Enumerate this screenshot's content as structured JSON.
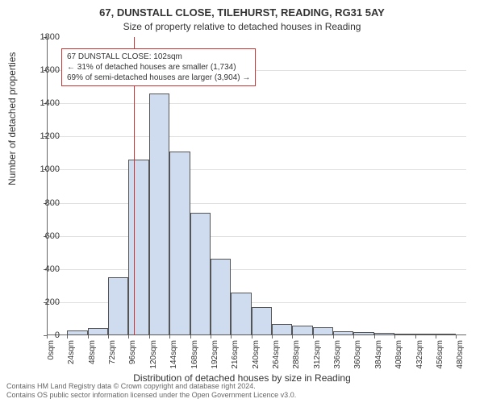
{
  "title_line1": "67, DUNSTALL CLOSE, TILEHURST, READING, RG31 5AY",
  "title_line2": "Size of property relative to detached houses in Reading",
  "chart": {
    "type": "histogram",
    "ylabel": "Number of detached properties",
    "xlabel": "Distribution of detached houses by size in Reading",
    "ylim": [
      0,
      1800
    ],
    "ytick_step": 200,
    "yticks": [
      0,
      200,
      400,
      600,
      800,
      1000,
      1200,
      1400,
      1600,
      1800
    ],
    "x_tick_labels": [
      "0sqm",
      "24sqm",
      "48sqm",
      "72sqm",
      "96sqm",
      "120sqm",
      "144sqm",
      "168sqm",
      "192sqm",
      "216sqm",
      "240sqm",
      "264sqm",
      "288sqm",
      "312sqm",
      "336sqm",
      "360sqm",
      "384sqm",
      "408sqm",
      "432sqm",
      "456sqm",
      "480sqm"
    ],
    "x_tick_values": [
      0,
      24,
      48,
      72,
      96,
      120,
      144,
      168,
      192,
      216,
      240,
      264,
      288,
      312,
      336,
      360,
      384,
      408,
      432,
      456,
      480
    ],
    "x_max": 492,
    "bin_width": 24,
    "bar_color": "#cfdcf0",
    "bar_border": "#555555",
    "marker_color": "#cc3333",
    "grid_color": "#e0e0e0",
    "background_color": "#ffffff",
    "bins": [
      {
        "start": 0,
        "count": 0
      },
      {
        "start": 24,
        "count": 30
      },
      {
        "start": 48,
        "count": 45
      },
      {
        "start": 72,
        "count": 350
      },
      {
        "start": 96,
        "count": 1060
      },
      {
        "start": 120,
        "count": 1460
      },
      {
        "start": 144,
        "count": 1110
      },
      {
        "start": 168,
        "count": 740
      },
      {
        "start": 192,
        "count": 460
      },
      {
        "start": 216,
        "count": 260
      },
      {
        "start": 240,
        "count": 170
      },
      {
        "start": 264,
        "count": 70
      },
      {
        "start": 288,
        "count": 60
      },
      {
        "start": 312,
        "count": 50
      },
      {
        "start": 336,
        "count": 25
      },
      {
        "start": 360,
        "count": 18
      },
      {
        "start": 384,
        "count": 14
      },
      {
        "start": 408,
        "count": 10
      },
      {
        "start": 432,
        "count": 9
      },
      {
        "start": 456,
        "count": 12
      }
    ],
    "marker_x": 102
  },
  "annotation": {
    "line1": "67 DUNSTALL CLOSE: 102sqm",
    "line2": "← 31% of detached houses are smaller (1,734)",
    "line3": "69% of semi-detached houses are larger (3,904) →",
    "border_color": "#cc3333"
  },
  "footer": {
    "line1": "Contains HM Land Registry data © Crown copyright and database right 2024.",
    "line2": "Contains OS public sector information licensed under the Open Government Licence v3.0."
  },
  "fontsizes": {
    "title": 13,
    "subtitle": 12,
    "axis_label": 12,
    "tick": 11,
    "xtick": 10,
    "annot": 10,
    "footer": 9
  }
}
